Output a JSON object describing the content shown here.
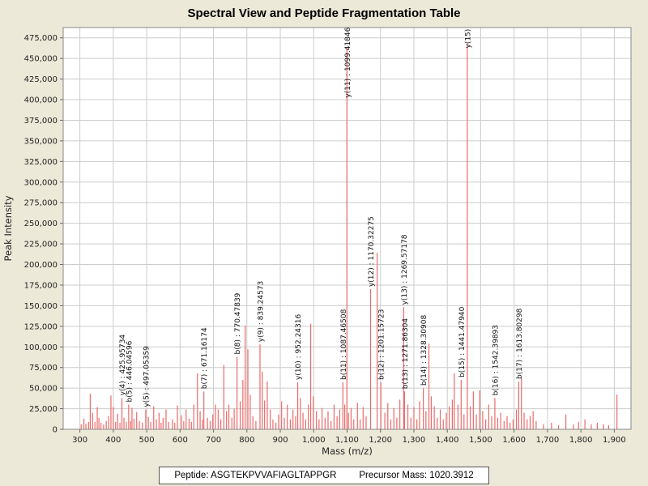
{
  "page": {
    "title": "Spectral View and Peptide Fragmentation Table"
  },
  "footer": {
    "peptide_text": "Peptide: ASGTEKPVVAFIAGLTAPPGR",
    "precursor_text": "Precursor Mass: 1020.3912"
  },
  "chart_data": {
    "type": "bar",
    "title": "Spectral View and Peptide Fragmentation Table",
    "xlabel": "Mass (m/z)",
    "ylabel": "Peak Intensity",
    "xlim": [
      250,
      1950
    ],
    "ylim": [
      0,
      487500
    ],
    "grid": true,
    "grid_color": "#cccccc",
    "bar_color": "#ec6a6a",
    "plot_bg": "#ffffff",
    "page_bg": "#ece9d8",
    "x_ticks": [
      300,
      400,
      500,
      600,
      700,
      800,
      900,
      1000,
      1100,
      1200,
      1300,
      1400,
      1500,
      1600,
      1700,
      1800,
      1900
    ],
    "y_ticks": [
      0,
      25000,
      50000,
      75000,
      100000,
      125000,
      150000,
      175000,
      200000,
      225000,
      250000,
      275000,
      300000,
      325000,
      350000,
      375000,
      400000,
      425000,
      450000,
      475000
    ],
    "annotated_peaks": [
      {
        "label": "y(4) : 425.95734",
        "mz": 425.95734,
        "intensity": 38000
      },
      {
        "label": "b(5) : 446.04596",
        "mz": 446.04596,
        "intensity": 30000
      },
      {
        "label": "y(5) : 497.05359",
        "mz": 497.05359,
        "intensity": 24000
      },
      {
        "label": "b(7) : 671.16174",
        "mz": 671.16174,
        "intensity": 46000
      },
      {
        "label": "b(8) : 770.47839",
        "mz": 770.47839,
        "intensity": 88000
      },
      {
        "label": "y(9) : 839.24573",
        "mz": 839.24573,
        "intensity": 103000
      },
      {
        "label": "y(10) : 952.24316",
        "mz": 952.24316,
        "intensity": 57000
      },
      {
        "label": "b(11) : 1087.46508",
        "mz": 1087.46508,
        "intensity": 57000
      },
      {
        "label": "y(11) : 1099.41846",
        "mz": 1099.41846,
        "intensity": 463000
      },
      {
        "label": "y(12) : 1170.32275",
        "mz": 1170.32275,
        "intensity": 170000
      },
      {
        "label": "b(12) : 1201.15723",
        "mz": 1201.15723,
        "intensity": 57000
      },
      {
        "label": "y(13) : 1269.57178",
        "mz": 1269.57178,
        "intensity": 148000
      },
      {
        "label": "b(13) : 1271.86304",
        "mz": 1271.86304,
        "intensity": 46000
      },
      {
        "label": "b(14) : 1328.30908",
        "mz": 1328.30908,
        "intensity": 50000
      },
      {
        "label": "b(15) : 1441.47940",
        "mz": 1441.4794,
        "intensity": 60000
      },
      {
        "label": "y(15)",
        "mz": 1460.0,
        "intensity": 468000
      },
      {
        "label": "b(16) : 1542.39893",
        "mz": 1542.39893,
        "intensity": 38000
      },
      {
        "label": "b(17) : 1613.80298",
        "mz": 1613.80298,
        "intensity": 58000
      }
    ],
    "peaks": [
      [
        304,
        6000
      ],
      [
        312,
        13000
      ],
      [
        318,
        7000
      ],
      [
        326,
        9000
      ],
      [
        331,
        43000
      ],
      [
        338,
        20000
      ],
      [
        345,
        9000
      ],
      [
        352,
        27000
      ],
      [
        357,
        14000
      ],
      [
        363,
        8000
      ],
      [
        371,
        6000
      ],
      [
        379,
        10000
      ],
      [
        386,
        16000
      ],
      [
        393,
        41000
      ],
      [
        400,
        27000
      ],
      [
        407,
        9000
      ],
      [
        413,
        19000
      ],
      [
        420,
        8000
      ],
      [
        432,
        14000
      ],
      [
        439,
        9000
      ],
      [
        452,
        10000
      ],
      [
        456,
        26000
      ],
      [
        462,
        13000
      ],
      [
        470,
        21000
      ],
      [
        478,
        10000
      ],
      [
        487,
        8000
      ],
      [
        505,
        15000
      ],
      [
        512,
        9000
      ],
      [
        521,
        28000
      ],
      [
        529,
        12000
      ],
      [
        537,
        20000
      ],
      [
        543,
        8000
      ],
      [
        549,
        14000
      ],
      [
        558,
        24000
      ],
      [
        566,
        9000
      ],
      [
        577,
        12000
      ],
      [
        584,
        8000
      ],
      [
        592,
        29000
      ],
      [
        604,
        17000
      ],
      [
        611,
        10000
      ],
      [
        618,
        24000
      ],
      [
        627,
        13000
      ],
      [
        634,
        9000
      ],
      [
        641,
        30000
      ],
      [
        652,
        68000
      ],
      [
        660,
        22000
      ],
      [
        667,
        12000
      ],
      [
        682,
        14000
      ],
      [
        690,
        10000
      ],
      [
        698,
        18000
      ],
      [
        706,
        30000
      ],
      [
        714,
        24000
      ],
      [
        722,
        12000
      ],
      [
        731,
        78000
      ],
      [
        739,
        22000
      ],
      [
        746,
        30000
      ],
      [
        755,
        14000
      ],
      [
        762,
        25000
      ],
      [
        780,
        34000
      ],
      [
        788,
        60000
      ],
      [
        795,
        126000
      ],
      [
        803,
        97000
      ],
      [
        810,
        42000
      ],
      [
        818,
        16000
      ],
      [
        827,
        10000
      ],
      [
        846,
        70000
      ],
      [
        853,
        35000
      ],
      [
        861,
        58000
      ],
      [
        870,
        24000
      ],
      [
        878,
        12000
      ],
      [
        887,
        8000
      ],
      [
        895,
        18000
      ],
      [
        904,
        34000
      ],
      [
        912,
        14000
      ],
      [
        921,
        30000
      ],
      [
        930,
        12000
      ],
      [
        938,
        24000
      ],
      [
        946,
        16000
      ],
      [
        960,
        38000
      ],
      [
        968,
        20000
      ],
      [
        976,
        12000
      ],
      [
        984,
        30000
      ],
      [
        991,
        128000
      ],
      [
        999,
        40000
      ],
      [
        1008,
        22000
      ],
      [
        1016,
        12000
      ],
      [
        1025,
        26000
      ],
      [
        1034,
        14000
      ],
      [
        1043,
        22000
      ],
      [
        1052,
        10000
      ],
      [
        1061,
        30000
      ],
      [
        1070,
        16000
      ],
      [
        1078,
        24000
      ],
      [
        1093,
        30000
      ],
      [
        1104,
        20000
      ],
      [
        1112,
        26000
      ],
      [
        1120,
        12000
      ],
      [
        1131,
        32000
      ],
      [
        1139,
        12000
      ],
      [
        1148,
        27000
      ],
      [
        1157,
        16000
      ],
      [
        1190,
        214000
      ],
      [
        1213,
        20000
      ],
      [
        1222,
        32000
      ],
      [
        1231,
        12000
      ],
      [
        1240,
        26000
      ],
      [
        1249,
        14000
      ],
      [
        1258,
        36000
      ],
      [
        1282,
        30000
      ],
      [
        1291,
        14000
      ],
      [
        1300,
        27000
      ],
      [
        1309,
        12000
      ],
      [
        1317,
        34000
      ],
      [
        1336,
        22000
      ],
      [
        1345,
        104000
      ],
      [
        1352,
        40000
      ],
      [
        1361,
        28000
      ],
      [
        1370,
        14000
      ],
      [
        1379,
        24000
      ],
      [
        1388,
        12000
      ],
      [
        1397,
        20000
      ],
      [
        1406,
        28000
      ],
      [
        1415,
        36000
      ],
      [
        1421,
        68000
      ],
      [
        1432,
        30000
      ],
      [
        1450,
        18000
      ],
      [
        1469,
        28000
      ],
      [
        1478,
        46000
      ],
      [
        1487,
        18000
      ],
      [
        1497,
        47000
      ],
      [
        1506,
        22000
      ],
      [
        1515,
        12000
      ],
      [
        1524,
        30000
      ],
      [
        1533,
        16000
      ],
      [
        1551,
        14000
      ],
      [
        1560,
        20000
      ],
      [
        1570,
        10000
      ],
      [
        1579,
        16000
      ],
      [
        1588,
        8000
      ],
      [
        1597,
        12000
      ],
      [
        1607,
        24000
      ],
      [
        1622,
        62000
      ],
      [
        1630,
        20000
      ],
      [
        1639,
        12000
      ],
      [
        1648,
        16000
      ],
      [
        1657,
        22000
      ],
      [
        1666,
        10000
      ],
      [
        1688,
        6000
      ],
      [
        1712,
        8000
      ],
      [
        1733,
        5000
      ],
      [
        1755,
        18000
      ],
      [
        1778,
        6000
      ],
      [
        1793,
        9000
      ],
      [
        1812,
        12000
      ],
      [
        1831,
        6000
      ],
      [
        1849,
        8000
      ],
      [
        1868,
        6000
      ],
      [
        1883,
        5000
      ],
      [
        1908,
        42000
      ]
    ]
  }
}
